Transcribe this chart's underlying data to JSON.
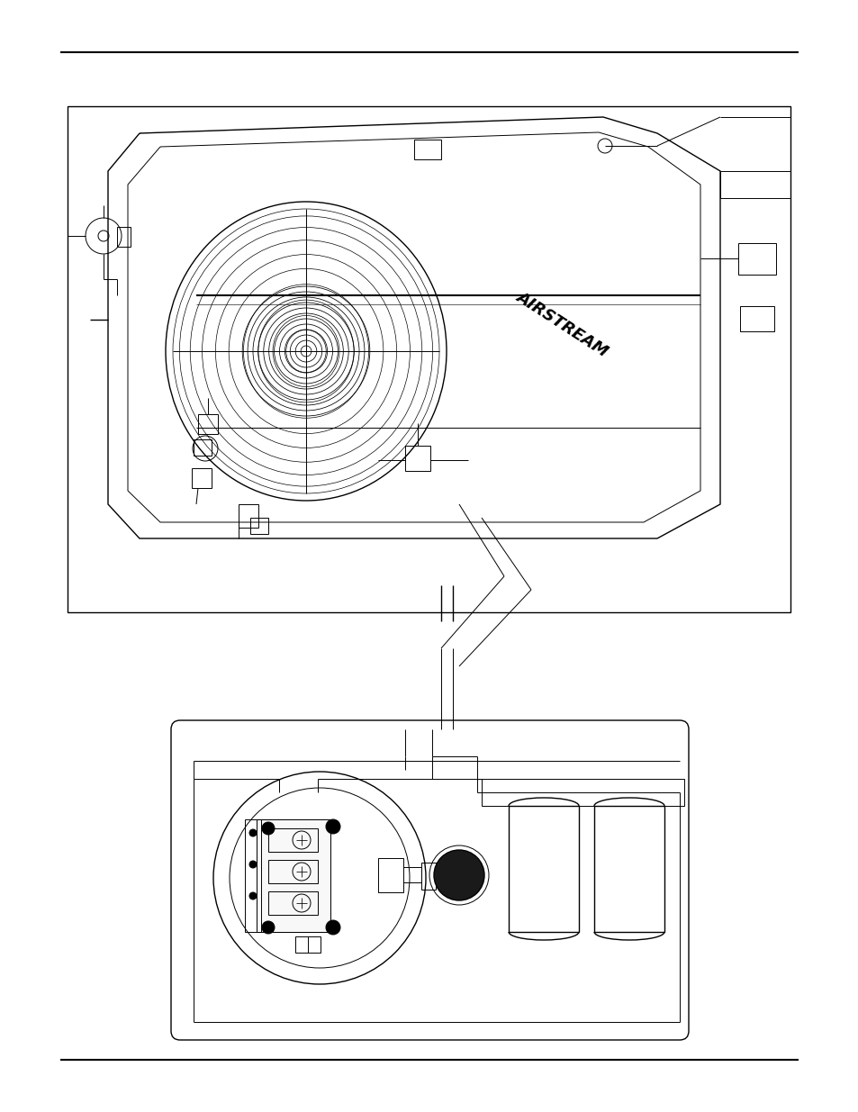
{
  "bg_color": "#ffffff",
  "line_color": "#000000",
  "lw_thin": 0.7,
  "lw_med": 1.0,
  "lw_thick": 1.5
}
